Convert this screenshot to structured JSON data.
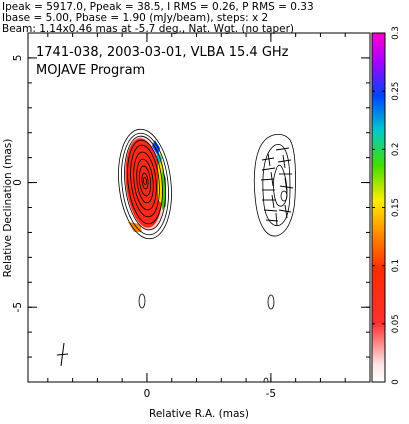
{
  "chart_data": {
    "type": "contour",
    "header_lines": [
      "Ipeak = 5917.0, Ppeak = 38.5, I RMS = 0.26, P RMS = 0.33",
      "Ibase = 5.00, Pbase = 1.90 (mJy/beam), steps: x 2",
      "Beam: 1.14x0.46 mas at -5.7 deg., Nat. Wgt. (no taper)"
    ],
    "title": "1741-038, 2003-03-01, VLBA 15.4 GHz",
    "subtitle": "MOJAVE Program",
    "xlabel": "Relative R.A. (mas)",
    "ylabel": "Relative Declination (mas)",
    "xlim": [
      4.8,
      -9.0
    ],
    "ylim": [
      -8.0,
      6.0
    ],
    "x_ticks": [
      {
        "v": 0,
        "label": "0"
      },
      {
        "v": -5,
        "label": "-5"
      }
    ],
    "y_ticks": [
      {
        "v": 5,
        "label": "5"
      },
      {
        "v": 0,
        "label": "0"
      },
      {
        "v": -5,
        "label": "-5"
      }
    ],
    "colorbar": {
      "min": 0,
      "max": 0.3,
      "ticks": [
        {
          "v": 0,
          "label": "0"
        },
        {
          "v": 0.05,
          "label": "0.05"
        },
        {
          "v": 0.1,
          "label": "0.1"
        },
        {
          "v": 0.15,
          "label": "0.15"
        },
        {
          "v": 0.2,
          "label": "0.2"
        },
        {
          "v": 0.25,
          "label": "0.25"
        },
        {
          "v": 0.3,
          "label": "0.3"
        }
      ]
    },
    "panels": [
      {
        "name": "stokes-i",
        "center": [
          0,
          0
        ]
      },
      {
        "name": "polarization",
        "center": [
          -5,
          0
        ]
      }
    ]
  }
}
